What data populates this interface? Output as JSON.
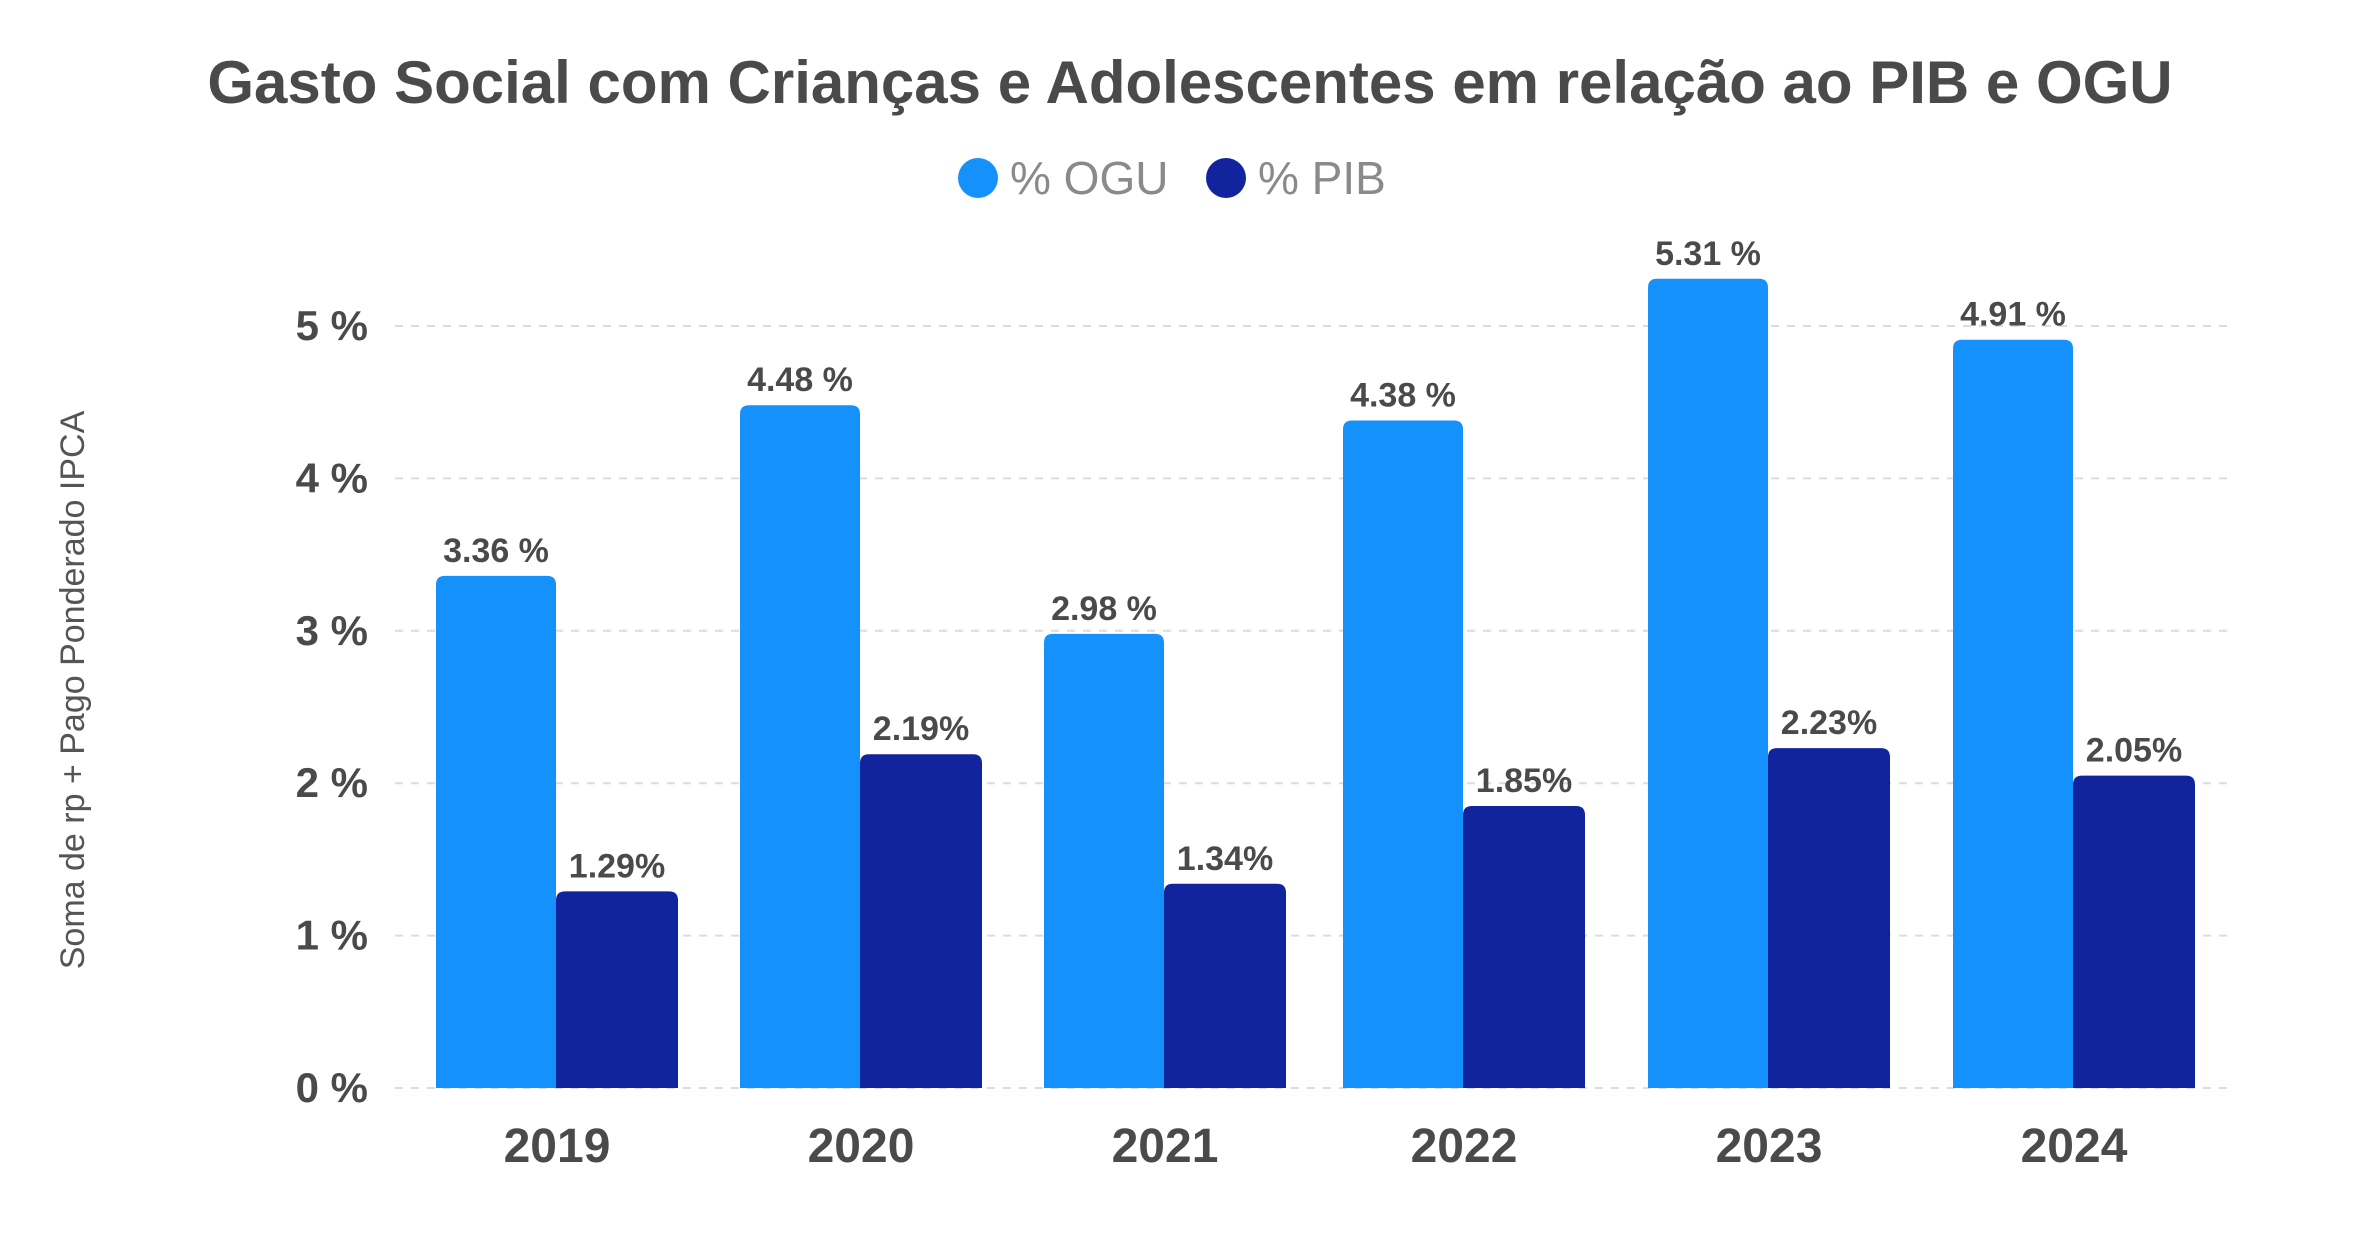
{
  "chart_data": {
    "type": "bar",
    "title": "Gasto Social com Crianças e Adolescentes em relação ao PIB e OGU",
    "xlabel": "",
    "ylabel": "Soma de rp + Pago Ponderado IPCA",
    "categories": [
      "2019",
      "2020",
      "2021",
      "2022",
      "2023",
      "2024"
    ],
    "series": [
      {
        "name": "% OGU",
        "color": "#1591fb",
        "values": [
          3.36,
          4.48,
          2.98,
          4.38,
          5.31,
          4.91
        ],
        "labels": [
          "3.36 %",
          "4.48 %",
          "2.98 %",
          "4.38 %",
          "5.31 %",
          "4.91 %"
        ]
      },
      {
        "name": "% PIB",
        "color": "#12239e",
        "values": [
          1.29,
          2.19,
          1.34,
          1.85,
          2.23,
          2.05
        ],
        "labels": [
          "1.29%",
          "2.19%",
          "1.34%",
          "1.85%",
          "2.23%",
          "2.05%"
        ]
      }
    ],
    "ylim": [
      0,
      5.3
    ],
    "yticks": [
      0,
      1,
      2,
      3,
      4,
      5
    ],
    "ytick_labels": [
      "0 %",
      "1 %",
      "2 %",
      "3 %",
      "4 %",
      "5 %"
    ],
    "grid": true,
    "legend_position": "top-center"
  }
}
